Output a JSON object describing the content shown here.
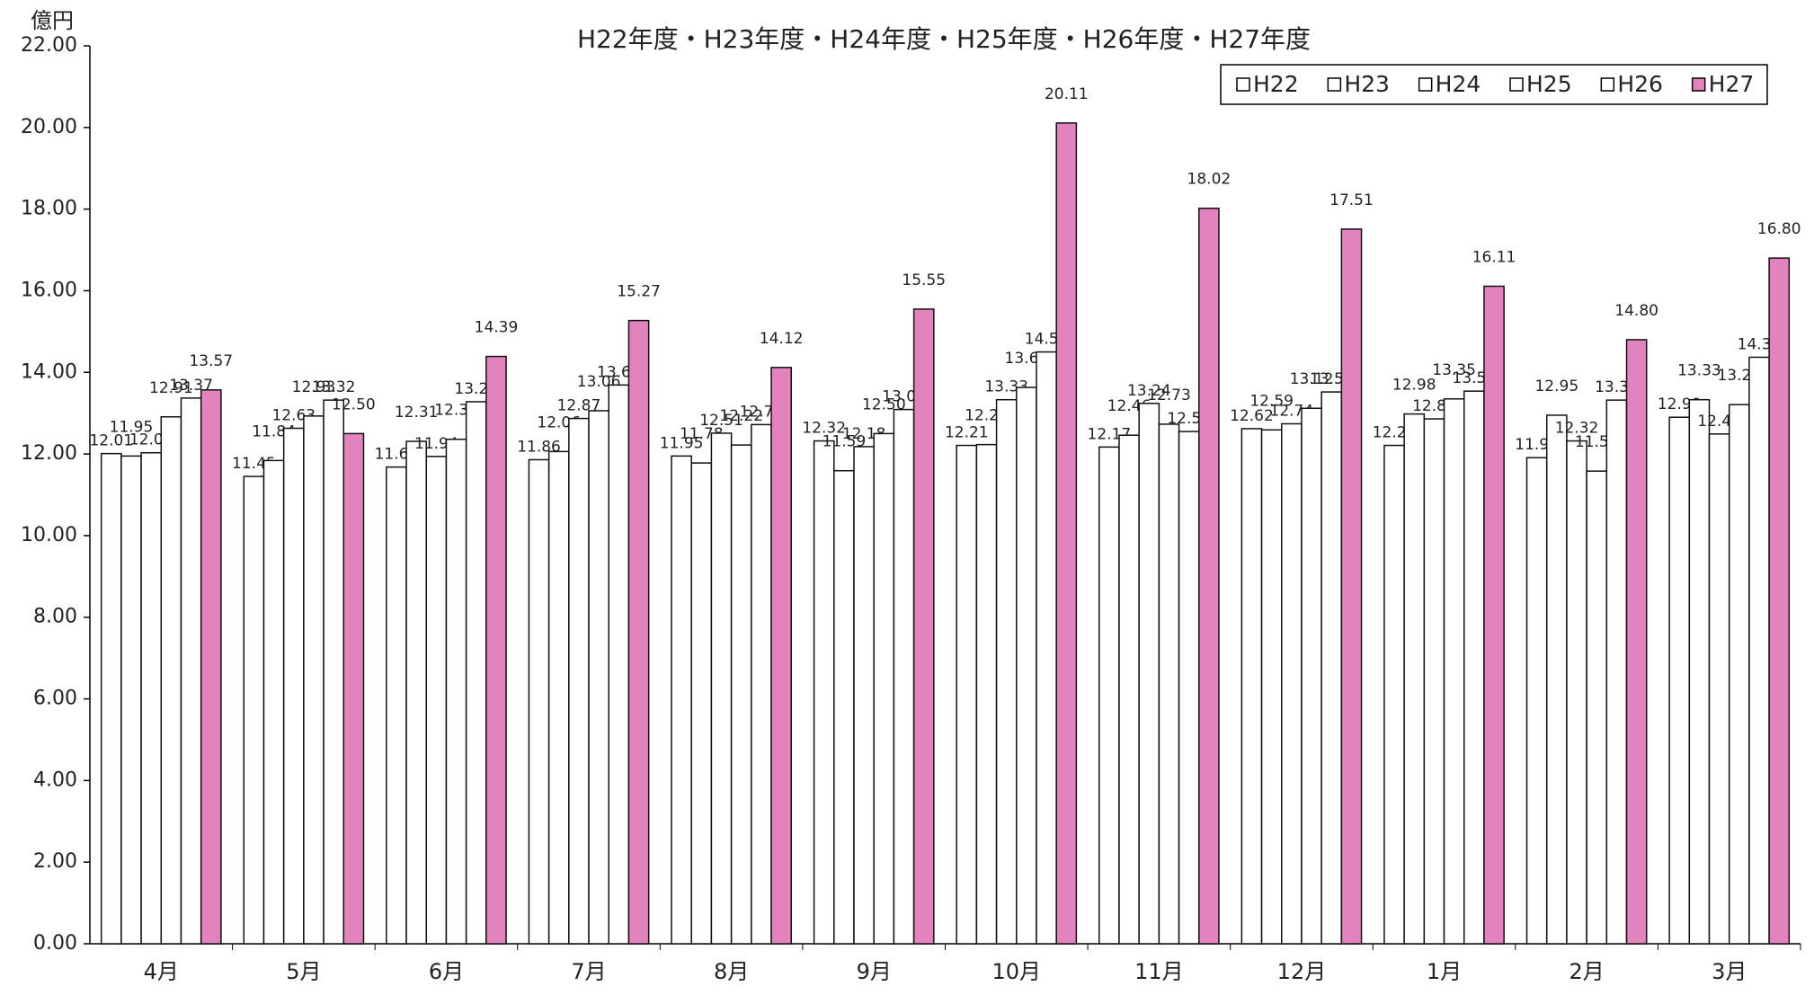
{
  "chart_data": {
    "type": "bar",
    "subtitle": "H22年度・H23年度・H24年度・H25年度・H26年度・H27年度",
    "y_label": "億円",
    "categories": [
      "4月",
      "5月",
      "6月",
      "7月",
      "8月",
      "9月",
      "10月",
      "11月",
      "12月",
      "1月",
      "2月",
      "3月"
    ],
    "series": [
      {
        "name": "H22",
        "color": "#ffffff",
        "values": [
          12.01,
          11.45,
          11.68,
          11.86,
          11.95,
          12.32,
          12.21,
          12.17,
          12.62,
          12.21,
          11.91,
          12.9
        ],
        "value_labels": [
          "12.01",
          "11.45",
          "11.68",
          "11.86",
          "11.95",
          "12.32",
          "12.21",
          "12.17",
          "12.62",
          "12.21",
          "11.91",
          "12.90"
        ]
      },
      {
        "name": "H23",
        "color": "#ffffff",
        "values": [
          11.95,
          11.84,
          12.31,
          12.06,
          11.78,
          11.59,
          12.23,
          12.46,
          12.59,
          12.98,
          12.95,
          13.33
        ],
        "value_labels": [
          "11.95",
          "11.84",
          "12.31",
          "12.06",
          "11.78",
          "11.59",
          "12.23",
          "12.46",
          "12.59",
          "12.98",
          "12.95",
          "13.33"
        ]
      },
      {
        "name": "H24",
        "color": "#ffffff",
        "values": [
          12.03,
          12.63,
          11.94,
          12.87,
          12.51,
          12.18,
          13.33,
          13.24,
          12.74,
          12.86,
          12.32,
          12.49
        ],
        "value_labels": [
          "12.03",
          "12.63",
          "11.94",
          "12.87",
          "12.51",
          "12.18",
          "13.33",
          "13.24",
          "12.74",
          "12.86",
          "12.32",
          "12.49"
        ]
      },
      {
        "name": "H25",
        "color": "#ffffff",
        "values": [
          12.91,
          12.93,
          12.36,
          13.06,
          12.22,
          12.5,
          13.63,
          12.73,
          13.12,
          13.35,
          11.58,
          13.21
        ],
        "value_labels": [
          "12.91",
          "12.93",
          "12.36",
          "13.06",
          "12.22",
          "12.50",
          "13.63",
          "12.73",
          "13.12",
          "13.35",
          "11.58",
          "13.21"
        ]
      },
      {
        "name": "H26",
        "color": "#ffffff",
        "values": [
          13.37,
          13.32,
          13.28,
          13.69,
          12.72,
          13.09,
          14.5,
          12.55,
          13.52,
          13.54,
          13.32,
          14.37
        ],
        "value_labels": [
          "13.37",
          "13.32",
          "13.28",
          "13.69",
          "12.72",
          "13.09",
          "14.50",
          "12.55",
          "13.52",
          "13.54",
          "13.32",
          "14.37"
        ]
      },
      {
        "name": "H27",
        "color": "#e383bd",
        "values": [
          13.57,
          12.5,
          14.39,
          15.27,
          14.12,
          15.55,
          20.11,
          18.02,
          17.51,
          16.11,
          14.8,
          16.8
        ],
        "value_labels": [
          "13.57",
          "12.50",
          "14.39",
          "15.27",
          "14.12",
          "15.55",
          "20.11",
          "18.02",
          "17.51",
          "16.11",
          "14.80",
          "16.80"
        ]
      }
    ],
    "ylim": [
      0,
      22
    ],
    "yticks": [
      {
        "value": 0,
        "label": "0.00"
      },
      {
        "value": 2,
        "label": "2.00"
      },
      {
        "value": 4,
        "label": "4.00"
      },
      {
        "value": 6,
        "label": "6.00"
      },
      {
        "value": 8,
        "label": "8.00"
      },
      {
        "value": 10,
        "label": "10.00"
      },
      {
        "value": 12,
        "label": "12.00"
      },
      {
        "value": 14,
        "label": "14.00"
      },
      {
        "value": 16,
        "label": "16.00"
      },
      {
        "value": 18,
        "label": "18.00"
      },
      {
        "value": 20,
        "label": "20.00"
      },
      {
        "value": 22,
        "label": "22.00"
      }
    ],
    "grid": false,
    "legend": "top-right"
  }
}
